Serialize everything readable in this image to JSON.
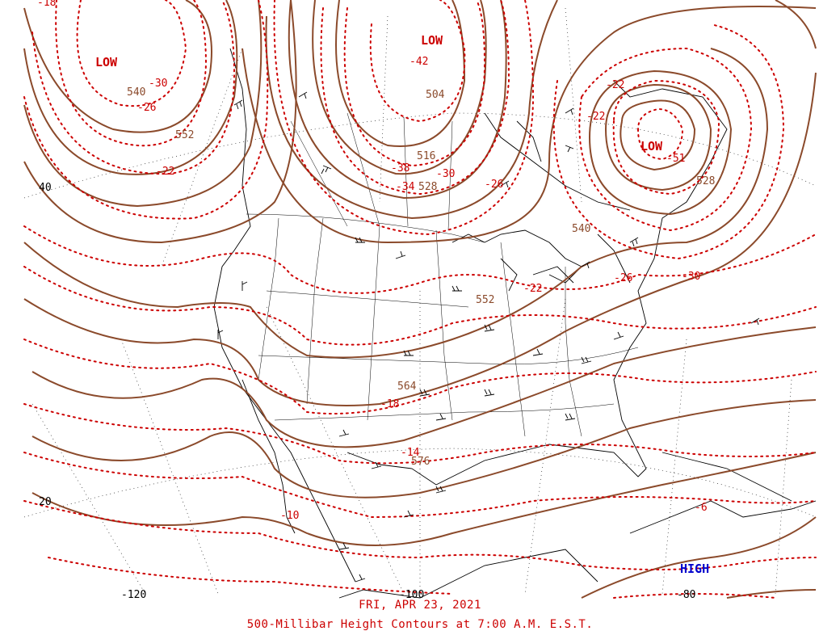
{
  "map_date": "FRI, APR 23, 2021",
  "map_title": "500-Millibar Height Contours at 7:00 A.M. E.S.T.",
  "pressure_centers": [
    {
      "id": "low-pacific",
      "label": "LOW",
      "type": "low"
    },
    {
      "id": "low-canada",
      "label": "LOW",
      "type": "low"
    },
    {
      "id": "low-quebec",
      "label": "LOW",
      "type": "low"
    },
    {
      "id": "high-caribbean",
      "label": "HIGH",
      "type": "high"
    }
  ],
  "height_labels": [
    "540",
    "552",
    "504",
    "516",
    "528",
    "540",
    "552",
    "564",
    "576",
    "528"
  ],
  "temperature_labels": [
    "-18",
    "-30",
    "-26",
    "-22",
    "-42",
    "-38",
    "-34",
    "-30",
    "-26",
    "-22",
    "-22",
    "-51",
    "-30",
    "-26",
    "-22",
    "-18",
    "-14",
    "-10",
    "-6"
  ],
  "latitude_labels": [
    "40",
    "20"
  ],
  "longitude_labels": [
    "-120",
    "-100",
    "-80"
  ],
  "colors": {
    "height_contour": "#8b4a2b",
    "temperature_isotherm": "#cc0000",
    "low_label": "#cc0000",
    "high_label": "#0000cc",
    "coastline": "#000000",
    "caption": "#cc0000"
  }
}
